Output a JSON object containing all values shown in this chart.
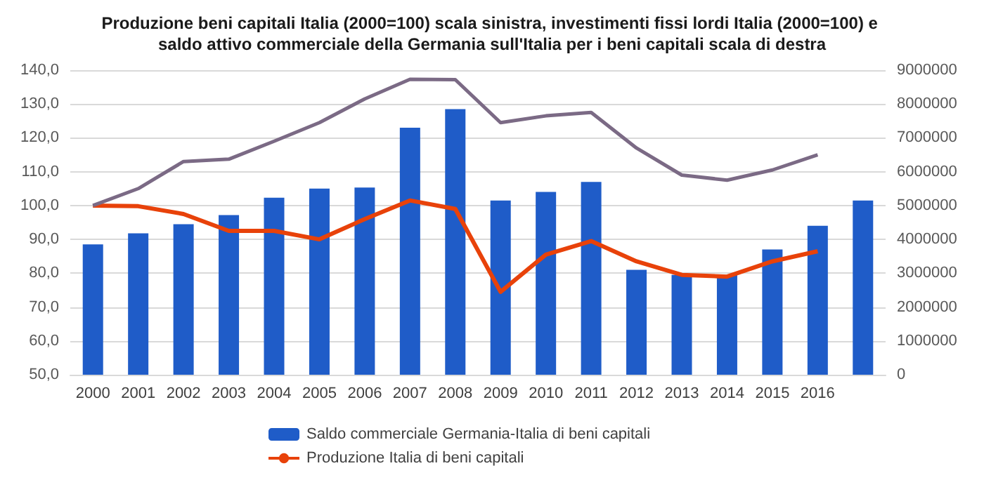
{
  "chart_data": {
    "type": "bar",
    "title": "Produzione beni capitali Italia (2000=100) scala sinistra, investimenti fissi lordi Italia (2000=100) e saldo attivo commerciale della Germania sull'Italia per i beni capitali scala di destra",
    "categories": [
      "2000",
      "2001",
      "2002",
      "2003",
      "2004",
      "2005",
      "2006",
      "2007",
      "2008",
      "2009",
      "2010",
      "2011",
      "2012",
      "2013",
      "2014",
      "2015",
      "2016",
      null
    ],
    "series": [
      {
        "name": "Saldo commerciale Germania-Italia di beni capitali",
        "axis": "y2",
        "color": "#1f5cc8",
        "values": [
          3850000,
          4180000,
          4450000,
          4720000,
          5230000,
          5500000,
          5530000,
          7300000,
          7850000,
          5150000,
          5400000,
          5700000,
          3100000,
          2950000,
          2950000,
          3700000,
          4400000,
          5150000
        ]
      },
      {
        "name": "Produzione Italia di beni capitali",
        "type": "line",
        "color": "#e8420a",
        "values": [
          100,
          99.8,
          97.5,
          92.5,
          92.5,
          90,
          96,
          101.5,
          99,
          74.5,
          85.5,
          89.5,
          83.5,
          79.5,
          79,
          83.5,
          86.5,
          null
        ]
      },
      {
        "type": "line",
        "color": "#7b6a85",
        "values": [
          100,
          105,
          113,
          113.7,
          119,
          124.5,
          131.5,
          137.3,
          137.2,
          124.5,
          126.5,
          127.5,
          117,
          109,
          107.5,
          110.5,
          115,
          null
        ]
      }
    ],
    "ylim": [
      50,
      140
    ],
    "yticks": [
      {
        "value": 50,
        "label": "50,0"
      },
      {
        "value": 60,
        "label": "60,0"
      },
      {
        "value": 70,
        "label": "70,0"
      },
      {
        "value": 80,
        "label": "80,0"
      },
      {
        "value": 90,
        "label": "90,0"
      },
      {
        "value": 100,
        "label": "100,0"
      },
      {
        "value": 110,
        "label": "110,0"
      },
      {
        "value": 120,
        "label": "120,0"
      },
      {
        "value": 130,
        "label": "130,0"
      },
      {
        "value": 140,
        "label": "140,0"
      }
    ],
    "y2lim": [
      0,
      9000000
    ],
    "y2ticks": [
      0,
      1000000,
      2000000,
      3000000,
      4000000,
      5000000,
      6000000,
      7000000,
      8000000,
      9000000
    ],
    "grid": "y",
    "legend": "bottom",
    "marker": "none"
  }
}
